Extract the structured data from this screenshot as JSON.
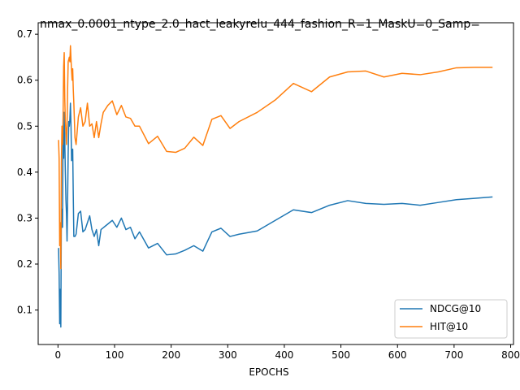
{
  "chart_data": {
    "type": "line",
    "title": "nmax_0.0001_ntype_2.0_hact_leakyrelu_444_fashion_R=1_MaskU=0_Samp=",
    "xlabel": "EPOCHS",
    "ylabel": "",
    "xlim": [
      -35,
      805
    ],
    "ylim": [
      0.025,
      0.725
    ],
    "xticks": [
      0,
      100,
      200,
      300,
      400,
      500,
      600,
      700,
      800
    ],
    "yticks": [
      0.1,
      0.2,
      0.3,
      0.4,
      0.5,
      0.6,
      0.7
    ],
    "grid": false,
    "legend": "lower-right",
    "series": [
      {
        "name": "NDCG@10",
        "color": "#1f77b4",
        "x": [
          1,
          2,
          3,
          4,
          5,
          6,
          7,
          8,
          9,
          10,
          11,
          12,
          13,
          14,
          15,
          16,
          17,
          18,
          19,
          20,
          21,
          22,
          23,
          24,
          25,
          26,
          27,
          28,
          30,
          32,
          36,
          40,
          44,
          48,
          52,
          56,
          60,
          64,
          68,
          72,
          76,
          96,
          104,
          112,
          120,
          128,
          136,
          144,
          160,
          176,
          192,
          208,
          224,
          240,
          256,
          272,
          288,
          304,
          320,
          352,
          384,
          416,
          448,
          480,
          512,
          544,
          576,
          608,
          640,
          672,
          704,
          736,
          768
        ],
        "y": [
          0.235,
          0.18,
          0.07,
          0.145,
          0.063,
          0.32,
          0.28,
          0.28,
          0.5,
          0.43,
          0.53,
          0.47,
          0.4,
          0.34,
          0.31,
          0.25,
          0.34,
          0.44,
          0.51,
          0.5,
          0.515,
          0.55,
          0.5,
          0.425,
          0.445,
          0.45,
          0.35,
          0.26,
          0.26,
          0.265,
          0.31,
          0.315,
          0.27,
          0.275,
          0.29,
          0.305,
          0.275,
          0.26,
          0.275,
          0.24,
          0.275,
          0.295,
          0.28,
          0.3,
          0.275,
          0.28,
          0.255,
          0.27,
          0.235,
          0.245,
          0.22,
          0.222,
          0.23,
          0.24,
          0.228,
          0.27,
          0.278,
          0.26,
          0.265,
          0.272,
          0.295,
          0.318,
          0.312,
          0.328,
          0.338,
          0.332,
          0.33,
          0.332,
          0.328,
          0.334,
          0.34,
          0.343,
          0.346
        ]
      },
      {
        "name": "HIT@10",
        "color": "#ff7f0e",
        "x": [
          1,
          2,
          3,
          4,
          5,
          6,
          7,
          8,
          9,
          10,
          11,
          12,
          13,
          14,
          15,
          16,
          17,
          18,
          19,
          20,
          21,
          22,
          23,
          24,
          25,
          26,
          27,
          28,
          30,
          32,
          36,
          40,
          44,
          48,
          52,
          56,
          60,
          64,
          68,
          72,
          76,
          80,
          88,
          96,
          104,
          112,
          120,
          128,
          136,
          144,
          160,
          176,
          192,
          208,
          224,
          240,
          256,
          272,
          288,
          304,
          320,
          352,
          384,
          416,
          448,
          480,
          512,
          544,
          576,
          608,
          640,
          672,
          704,
          736,
          768
        ],
        "y": [
          0.47,
          0.43,
          0.24,
          0.29,
          0.19,
          0.42,
          0.5,
          0.46,
          0.52,
          0.63,
          0.66,
          0.56,
          0.51,
          0.49,
          0.46,
          0.5,
          0.58,
          0.64,
          0.645,
          0.65,
          0.64,
          0.675,
          0.645,
          0.62,
          0.6,
          0.625,
          0.58,
          0.55,
          0.475,
          0.46,
          0.52,
          0.54,
          0.5,
          0.51,
          0.55,
          0.5,
          0.505,
          0.475,
          0.51,
          0.475,
          0.505,
          0.53,
          0.545,
          0.555,
          0.525,
          0.545,
          0.52,
          0.517,
          0.5,
          0.5,
          0.462,
          0.478,
          0.445,
          0.443,
          0.452,
          0.476,
          0.458,
          0.515,
          0.523,
          0.495,
          0.51,
          0.53,
          0.557,
          0.593,
          0.575,
          0.607,
          0.618,
          0.62,
          0.607,
          0.615,
          0.612,
          0.618,
          0.627,
          0.628,
          0.628
        ]
      }
    ]
  }
}
